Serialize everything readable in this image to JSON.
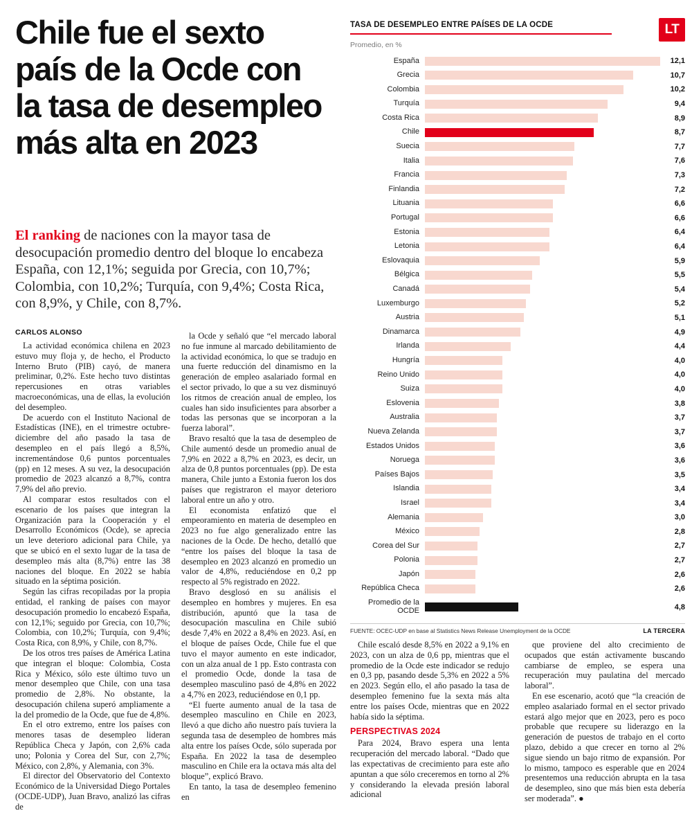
{
  "masthead": {
    "logo_text": "LT"
  },
  "headline": "Chile fue el sexto país de la Ocde con la tasa de desempleo más alta en 2023",
  "lede": {
    "highlight": "El ranking",
    "rest": " de naciones con la mayor tasa de desocupación promedio dentro del bloque lo encabeza España, con 12,1%; seguida por Grecia, con 10,7%; Colombia, con 10,2%; Turquía, con 9,4%; Costa Rica, con 8,9%, y Chile, con 8,7%."
  },
  "byline": "CARLOS ALONSO",
  "article": {
    "col1": [
      {
        "t": "p",
        "text": "La actividad económica chilena en 2023 estuvo muy floja y, de hecho, el Producto Interno Bruto (PIB) cayó, de manera preliminar, 0,2%. Este hecho tuvo distintas repercusiones en otras variables macroeconómicas, una de ellas, la evolución del desempleo."
      },
      {
        "t": "p",
        "text": "De acuerdo con el Instituto Nacional de Estadísticas (INE), en el trimestre octubre-diciembre del año pasado la tasa de desempleo en el país llegó a 8,5%, incrementándose 0,6 puntos porcentuales (pp) en 12 meses. A su vez, la desocupación promedio de 2023 alcanzó a 8,7%, contra 7,9% del año previo."
      },
      {
        "t": "p",
        "text": "Al comparar estos resultados con el escenario de los países que integran la Organización para la Cooperación y el Desarrollo Económicos (Ocde), se aprecia un leve deterioro adicional para Chile, ya que se ubicó en el sexto lugar de la tasa de desempleo más alta (8,7%) entre las 38 naciones del bloque. En 2022 se había situado en la séptima posición."
      },
      {
        "t": "p",
        "text": "Según las cifras recopiladas por la propia entidad, el ranking de países con mayor desocupación promedio lo encabezó España, con 12,1%; seguido por Grecia, con 10,7%; Colombia, con 10,2%; Turquía, con 9,4%; Costa Rica, con 8,9%, y Chile, con 8,7%."
      },
      {
        "t": "p",
        "text": "De los otros tres países de América Latina que integran el bloque: Colombia, Costa Rica y México, sólo este último tuvo un menor desempleo que Chile, con una tasa promedio de 2,8%. No obstante, la desocupación chilena superó ampliamente a la del promedio de la Ocde, que fue de 4,8%."
      },
      {
        "t": "p",
        "text": "En el otro extremo, entre los países con menores tasas de desempleo lideran República Checa y Japón, con 2,6% cada uno; Polonia y Corea del Sur, con 2,7%; México, con 2,8%, y Alemania, con 3%."
      },
      {
        "t": "p",
        "text": "El director del Observatorio del Contexto Económico de la Universidad Diego Portales (OCDE-UDP), Juan Bravo, analizó las cifras de"
      }
    ],
    "col2": [
      {
        "t": "p",
        "text": "la Ocde y señaló que “el mercado laboral no fue inmune al marcado debilitamiento de la actividad económica, lo que se tradujo en una fuerte reducción del dinamismo en la generación de empleo asalariado formal en el sector privado, lo que a su vez disminuyó los ritmos de creación anual de empleo, los cuales han sido insuficientes para absorber a todas las personas que se incorporan a la fuerza laboral”."
      },
      {
        "t": "p",
        "text": "Bravo resaltó que la tasa de desempleo de Chile aumentó desde un promedio anual de 7,9% en 2022 a 8,7% en 2023, es decir, un alza de 0,8 puntos porcentuales (pp). De esta manera, Chile junto a Estonia fueron los dos países que registraron el mayor deterioro laboral entre un año y otro."
      },
      {
        "t": "p",
        "text": "El economista enfatizó que el empeoramiento en materia de desempleo en 2023 no fue algo generalizado entre las naciones de la Ocde. De hecho, detalló que “entre los países del bloque la tasa de desempleo en 2023 alcanzó en promedio un valor de 4,8%, reduciéndose en 0,2 pp respecto al 5% registrado en 2022."
      },
      {
        "t": "p",
        "text": "Bravo desglosó en su análisis el desempleo en hombres y mujeres. En esa distribución, apuntó que la tasa de desocupación masculina en Chile subió desde 7,4% en 2022 a 8,4% en 2023. Así, en el bloque de países Ocde, Chile fue el que tuvo el mayor aumento en este indicador, con un alza anual de 1 pp. Esto contrasta con el promedio Ocde, donde la tasa de desempleo masculino pasó de 4,8% en 2022 a 4,7% en 2023, reduciéndose en 0,1 pp."
      },
      {
        "t": "p",
        "text": "“El fuerte aumento anual de la tasa de desempleo masculino en Chile en 2023, llevó a que dicho año nuestro país tuviera la segunda tasa de desempleo de hombres más alta entre los países Ocde, sólo superada por España. En 2022 la tasa de desempleo masculino en Chile era la octava más alta del bloque”, explicó Bravo."
      },
      {
        "t": "p",
        "text": "En tanto, la tasa de desempleo femenino en"
      }
    ],
    "col3": [
      {
        "t": "p",
        "text": "Chile escaló desde 8,5% en 2022 a 9,1% en 2023, con un alza de 0,6 pp, mientras que el promedio de la Ocde este indicador se redujo en 0,3 pp, pasando desde 5,3% en 2022 a 5% en 2023. Según ello, el año pasado la tasa de desempleo femenino fue la sexta más alta entre los países Ocde, mientras que en 2022 había sido la séptima."
      },
      {
        "t": "h",
        "text": "PERSPECTIVAS 2024"
      },
      {
        "t": "p",
        "text": "Para 2024, Bravo espera una lenta recuperación del mercado laboral. “Dado que las expectativas de crecimiento para este año apuntan a que sólo creceremos en torno al 2% y considerando la elevada presión laboral adicional"
      }
    ],
    "col4": [
      {
        "t": "p",
        "text": "que proviene del alto crecimiento de ocupados que están activamente buscando cambiarse de empleo, se espera una recuperación muy paulatina del mercado laboral”."
      },
      {
        "t": "p",
        "text": "En ese escenario, acotó que “la creación de empleo asalariado formal en el sector privado estará algo mejor que en 2023, pero es poco probable que recupere su liderazgo en la generación de puestos de trabajo en el corto plazo, debido a que crecer en torno al 2% sigue siendo un bajo ritmo de expansión. Por lo mismo, tampoco es esperable que en 2024 presentemos una reducción abrupta en la tasa de desempleo, sino que más bien esta debería ser moderada”. ●"
      }
    ]
  },
  "chart": {
    "title": "TASA DE DESEMPLEO ENTRE PAÍSES DE LA OCDE",
    "subtitle": "Promedio, en %",
    "source": "FUENTE: OCEC-UDP en base al Statistics News Release Unemployment de la OCDE",
    "credit": "LA TERCERA"
  },
  "chart_data": {
    "type": "bar",
    "orientation": "horizontal",
    "title": "TASA DE DESEMPLEO ENTRE PAÍSES DE LA OCDE",
    "subtitle": "Promedio, en %",
    "xlim": [
      0,
      12.1
    ],
    "decimal_separator": ",",
    "categories": [
      "España",
      "Grecia",
      "Colombia",
      "Turquía",
      "Costa Rica",
      "Chile",
      "Suecia",
      "Italia",
      "Francia",
      "Finlandia",
      "Lituania",
      "Portugal",
      "Estonia",
      "Letonia",
      "Eslovaquia",
      "Bélgica",
      "Canadá",
      "Luxemburgo",
      "Austria",
      "Dinamarca",
      "Irlanda",
      "Hungría",
      "Reino Unido",
      "Suiza",
      "Eslovenia",
      "Australia",
      "Nueva Zelanda",
      "Estados Unidos",
      "Noruega",
      "Países Bajos",
      "Islandia",
      "Israel",
      "Alemania",
      "México",
      "Corea del Sur",
      "Polonia",
      "Japón",
      "República Checa"
    ],
    "values": [
      12.1,
      10.7,
      10.2,
      9.4,
      8.9,
      8.7,
      7.7,
      7.6,
      7.3,
      7.2,
      6.6,
      6.6,
      6.4,
      6.4,
      5.9,
      5.5,
      5.4,
      5.2,
      5.1,
      4.9,
      4.4,
      4.0,
      4.0,
      4.0,
      3.8,
      3.7,
      3.7,
      3.6,
      3.6,
      3.5,
      3.4,
      3.4,
      3.0,
      2.8,
      2.7,
      2.7,
      2.6,
      2.6
    ],
    "highlight_category": "Chile",
    "average_row": {
      "label": "Promedio de la OCDE",
      "value": 4.8
    },
    "colors": {
      "bar": "#f8d8cf",
      "highlight": "#e2001a",
      "average": "#121212"
    }
  }
}
